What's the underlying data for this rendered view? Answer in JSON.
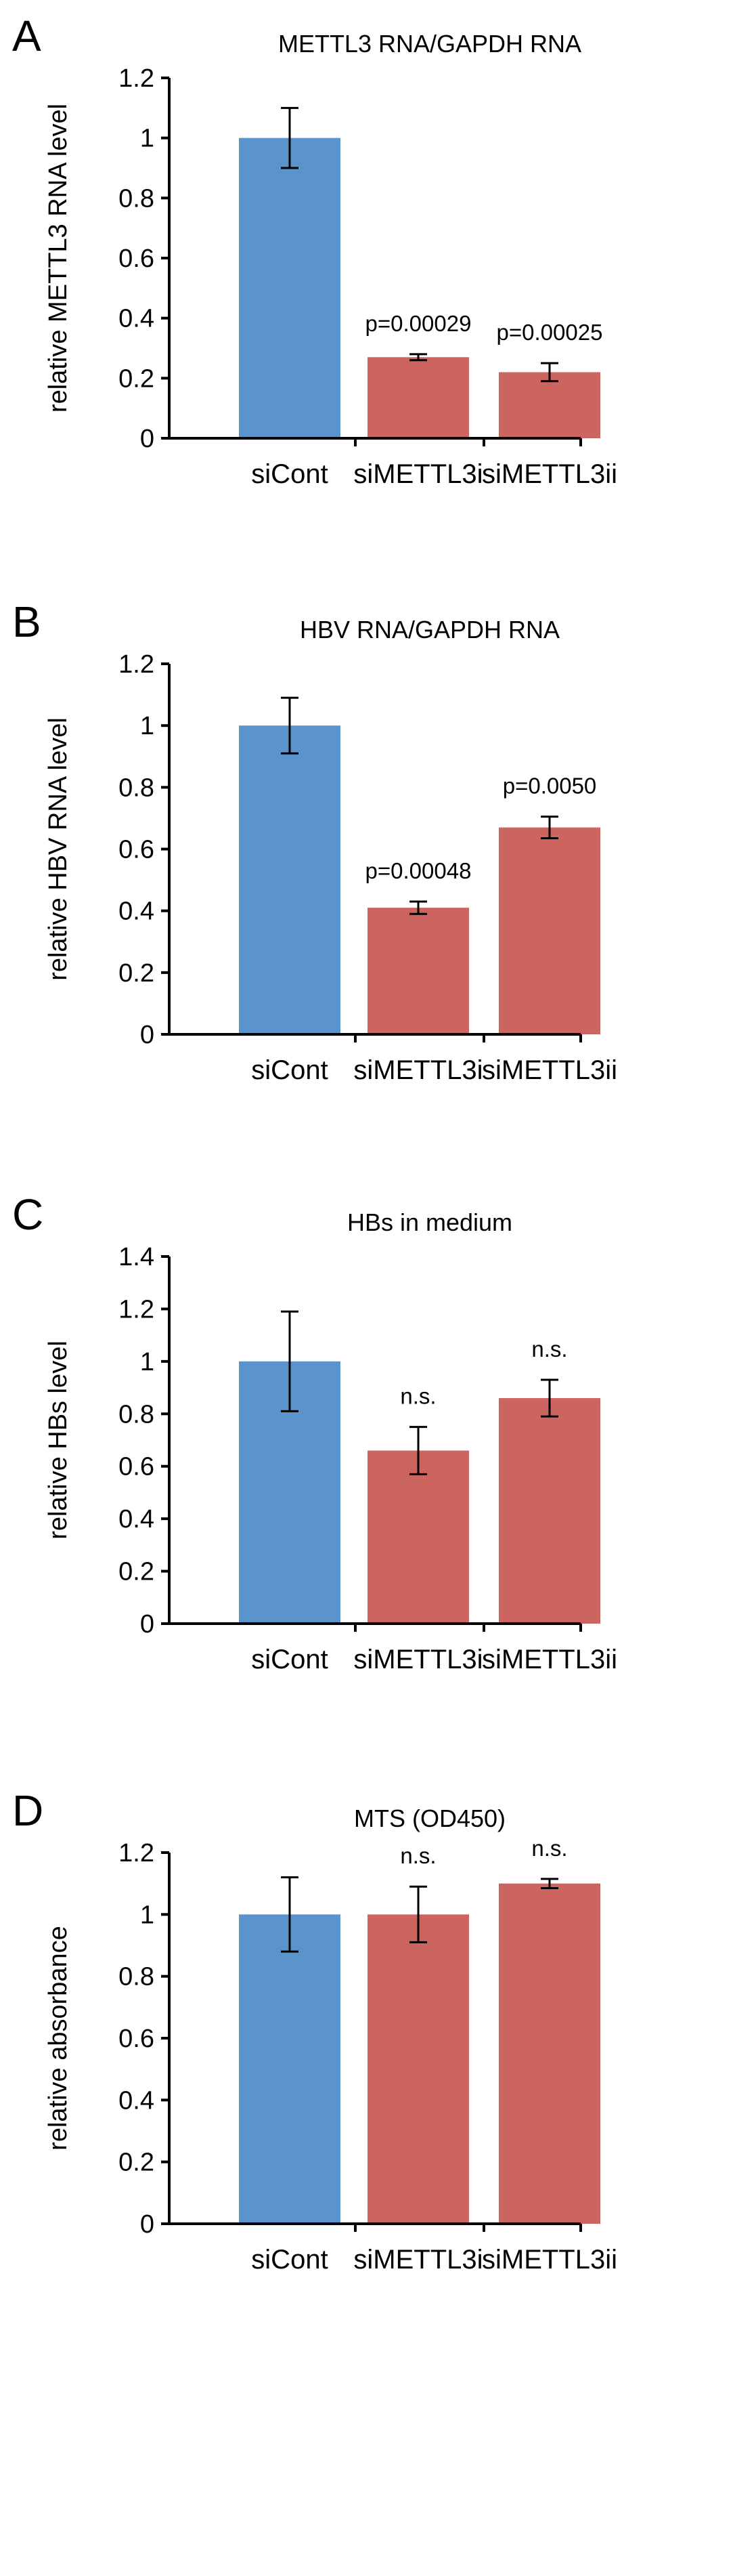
{
  "chart_data": [
    {
      "panel": "A",
      "type": "bar",
      "title": "METTL3 RNA/GAPDH RNA",
      "xlabel": "",
      "ylabel": "relative METTL3 RNA level",
      "ylim": [
        0,
        1.2
      ],
      "yticks": [
        "0",
        "0.2",
        "0.4",
        "0.6",
        "0.8",
        "1",
        "1.2"
      ],
      "categories": [
        "siCont",
        "siMETTL3i",
        "siMETTL3ii"
      ],
      "values": [
        1.0,
        0.27,
        0.22
      ],
      "errors": [
        0.1,
        0.01,
        0.03
      ],
      "annotations": [
        "",
        "p=0.00029",
        "p=0.00025"
      ]
    },
    {
      "panel": "B",
      "type": "bar",
      "title": "HBV RNA/GAPDH RNA",
      "xlabel": "",
      "ylabel": "relative HBV RNA level",
      "ylim": [
        0,
        1.2
      ],
      "yticks": [
        "0",
        "0.2",
        "0.4",
        "0.6",
        "0.8",
        "1",
        "1.2"
      ],
      "categories": [
        "siCont",
        "siMETTL3i",
        "siMETTL3ii"
      ],
      "values": [
        1.0,
        0.41,
        0.67
      ],
      "errors": [
        0.09,
        0.02,
        0.035
      ],
      "annotations": [
        "",
        "p=0.00048",
        "p=0.0050"
      ]
    },
    {
      "panel": "C",
      "type": "bar",
      "title": "HBs in medium",
      "xlabel": "",
      "ylabel": "relative HBs level",
      "ylim": [
        0,
        1.4
      ],
      "yticks": [
        "0",
        "0.2",
        "0.4",
        "0.6",
        "0.8",
        "1",
        "1.2",
        "1.4"
      ],
      "categories": [
        "siCont",
        "siMETTL3i",
        "siMETTL3ii"
      ],
      "values": [
        1.0,
        0.66,
        0.86
      ],
      "errors": [
        0.19,
        0.09,
        0.07
      ],
      "annotations": [
        "",
        "n.s.",
        "n.s."
      ]
    },
    {
      "panel": "D",
      "type": "bar",
      "title": "MTS (OD450)",
      "xlabel": "",
      "ylabel": "relative absorbance",
      "ylim": [
        0,
        1.2
      ],
      "yticks": [
        "0",
        "0.2",
        "0.4",
        "0.6",
        "0.8",
        "1",
        "1.2"
      ],
      "categories": [
        "siCont",
        "siMETTL3i",
        "siMETTL3ii"
      ],
      "values": [
        1.0,
        1.0,
        1.1
      ],
      "errors": [
        0.12,
        0.09,
        0.015
      ],
      "annotations": [
        "",
        "n.s.",
        "n.s."
      ]
    }
  ],
  "colors": {
    "control": "#5b93cc",
    "treatment": "#cc6460"
  }
}
